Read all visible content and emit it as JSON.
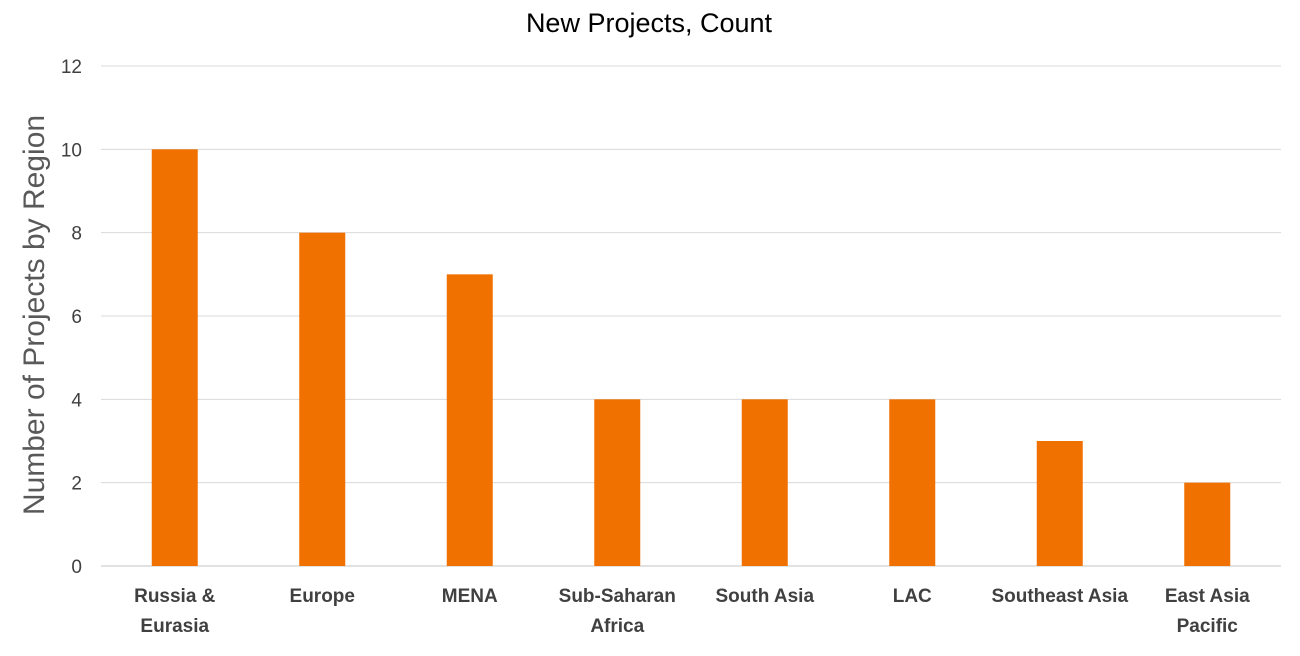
{
  "chart_data": {
    "type": "bar",
    "title": "New Projects, Count",
    "xlabel": "",
    "ylabel": "Number of Projects by Region",
    "categories": [
      [
        "Russia &",
        "Eurasia"
      ],
      [
        "Europe"
      ],
      [
        "MENA"
      ],
      [
        "Sub-Saharan",
        "Africa"
      ],
      [
        "South Asia"
      ],
      [
        "LAC"
      ],
      [
        "Southeast Asia"
      ],
      [
        "East Asia",
        "Pacific"
      ]
    ],
    "values": [
      10,
      8,
      7,
      4,
      4,
      4,
      3,
      2
    ],
    "ylim": [
      0,
      12
    ],
    "yticks": [
      0,
      2,
      4,
      6,
      8,
      10,
      12
    ],
    "grid": true,
    "legend": "none",
    "colors": {
      "bar": "#F07000",
      "grid": "#D9D9D9",
      "text": "#404040"
    }
  }
}
